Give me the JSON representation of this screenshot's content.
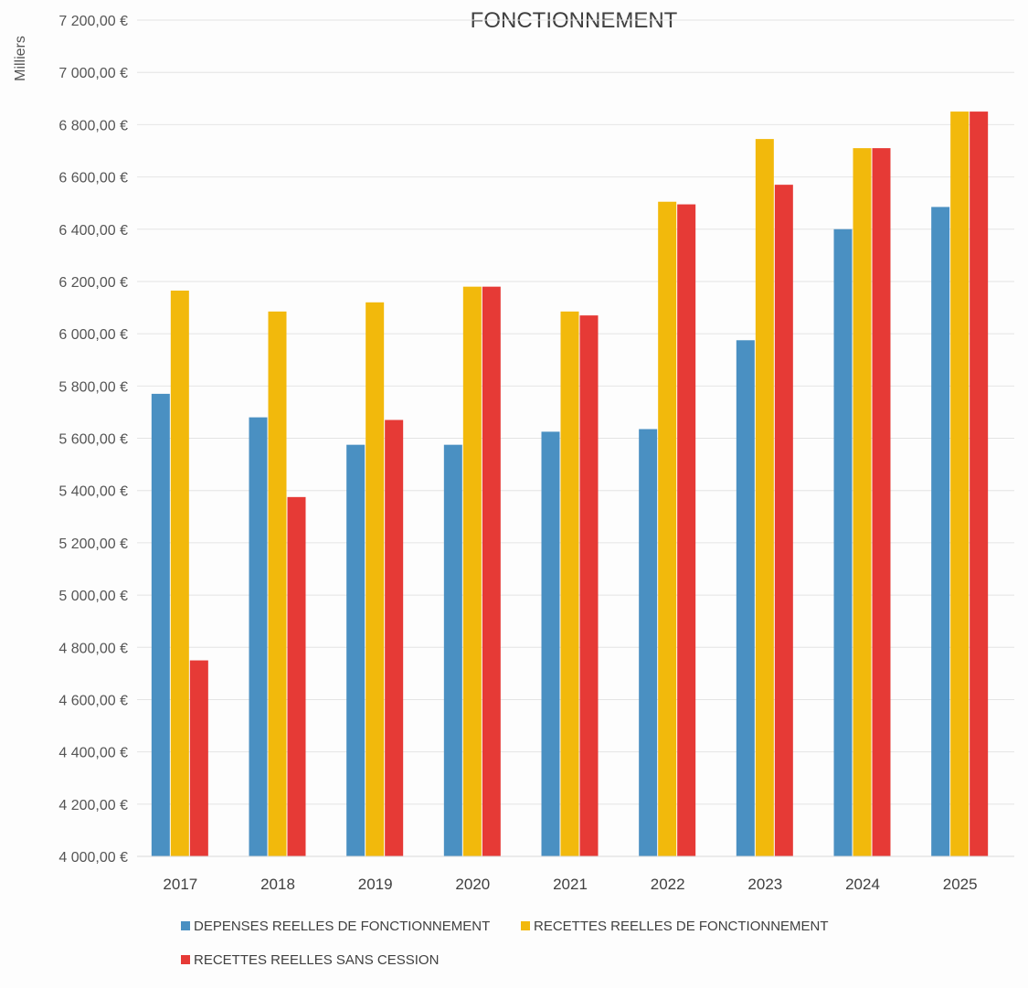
{
  "chart_data": {
    "type": "bar",
    "title": "FONCTIONNEMENT",
    "unit_label": "Milliers",
    "xlabel": "",
    "ylabel": "",
    "categories": [
      "2017",
      "2018",
      "2019",
      "2020",
      "2021",
      "2022",
      "2023",
      "2024",
      "2025"
    ],
    "ylim": [
      4000,
      7200
    ],
    "yticks": [
      4000,
      4200,
      4400,
      4600,
      4800,
      5000,
      5200,
      5400,
      5600,
      5800,
      6000,
      6200,
      6400,
      6600,
      6800,
      7000,
      7200
    ],
    "ytick_labels": [
      "4 000,00 €",
      "4 200,00 €",
      "4 400,00 €",
      "4 600,00 €",
      "4 800,00 €",
      "5 000,00 €",
      "5 200,00 €",
      "5 400,00 €",
      "5 600,00 €",
      "5 800,00 €",
      "6 000,00 €",
      "6 200,00 €",
      "6 400,00 €",
      "6 600,00 €",
      "6 800,00 €",
      "7 000,00 €",
      "7 200,00 €"
    ],
    "grid": true,
    "legend_position": "bottom",
    "series": [
      {
        "name": "DEPENSES REELLES DE FONCTIONNEMENT",
        "color": "#4a90c2",
        "values": [
          5770,
          5680,
          5575,
          5575,
          5625,
          5635,
          5975,
          6400,
          6485
        ]
      },
      {
        "name": "RECETTES REELLES DE FONCTIONNEMENT",
        "color": "#f2b90c",
        "values": [
          6165,
          6085,
          6120,
          6180,
          6085,
          6505,
          6745,
          6710,
          6850
        ]
      },
      {
        "name": "RECETTES REELLES SANS CESSION",
        "color": "#e63a36",
        "values": [
          4750,
          5375,
          5670,
          6180,
          6070,
          6495,
          6570,
          6710,
          6850
        ]
      }
    ]
  }
}
